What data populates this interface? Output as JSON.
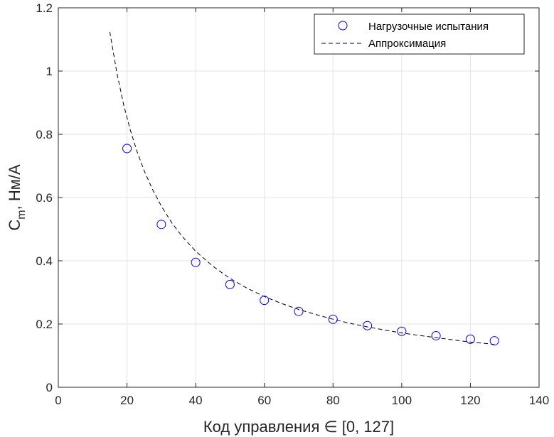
{
  "chart_data": {
    "type": "scatter",
    "xlabel": "Код управления ∈ [0, 127]",
    "ylabel_main": "C",
    "ylabel_sub": "m",
    "ylabel_rest": ", Нм/А",
    "xlim": [
      0,
      140
    ],
    "ylim": [
      0,
      1.2
    ],
    "xticks": [
      0,
      20,
      40,
      60,
      80,
      100,
      120,
      140
    ],
    "xtick_labels": [
      "0",
      "20",
      "40",
      "60",
      "80",
      "100",
      "120",
      "140"
    ],
    "yticks": [
      0,
      0.2,
      0.4,
      0.6,
      0.8,
      1,
      1.2
    ],
    "ytick_labels": [
      "0",
      "0.2",
      "0.4",
      "0.6",
      "0.8",
      "1",
      "1.2"
    ],
    "grid": true,
    "legend_position": "top-right",
    "series": [
      {
        "name": "Нагрузочные испытания",
        "style": "markers",
        "marker": "circle",
        "color": "#0000ff",
        "x": [
          20,
          30,
          40,
          50,
          60,
          70,
          80,
          90,
          100,
          110,
          120,
          127
        ],
        "y": [
          0.755,
          0.515,
          0.395,
          0.325,
          0.275,
          0.24,
          0.215,
          0.195,
          0.177,
          0.163,
          0.152,
          0.147
        ]
      },
      {
        "name": "Аппроксимация",
        "style": "dashed-line",
        "color": "#000000",
        "x": [
          15,
          17,
          19,
          21,
          23,
          25,
          27.5,
          30,
          33,
          36,
          40,
          45,
          50,
          55,
          60,
          65,
          70,
          75,
          80,
          85,
          90,
          95,
          100,
          105,
          110,
          115,
          120,
          125,
          127
        ],
        "y": [
          1.124,
          0.997,
          0.895,
          0.812,
          0.743,
          0.685,
          0.624,
          0.573,
          0.521,
          0.478,
          0.43,
          0.383,
          0.344,
          0.313,
          0.287,
          0.265,
          0.246,
          0.23,
          0.215,
          0.202,
          0.191,
          0.181,
          0.172,
          0.164,
          0.157,
          0.15,
          0.143,
          0.138,
          0.135
        ]
      }
    ]
  }
}
